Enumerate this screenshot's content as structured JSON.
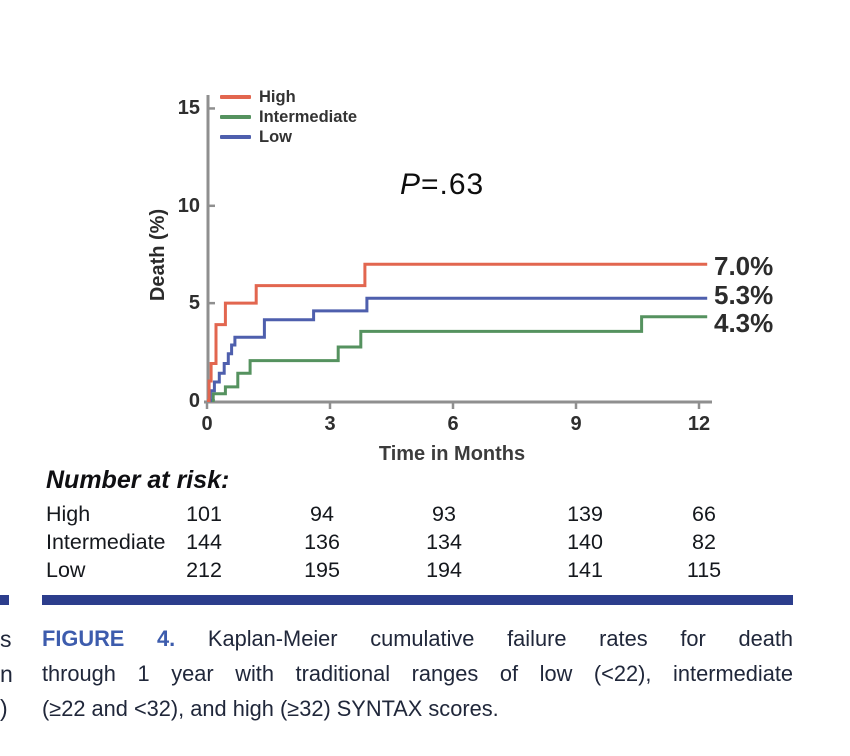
{
  "figure": {
    "p_value": {
      "italic": "P",
      "rest": "=.63"
    },
    "x_axis": {
      "label": "Time in Months",
      "ticks": [
        "0",
        "3",
        "6",
        "9",
        "12"
      ]
    },
    "y_axis": {
      "label": "Death (%)",
      "ticks": [
        "0",
        "5",
        "10",
        "15"
      ]
    },
    "legend": [
      {
        "name": "High",
        "color": "#E2664F"
      },
      {
        "name": "Intermediate",
        "color": "#55925F"
      },
      {
        "name": "Low",
        "color": "#4E5FAD"
      }
    ],
    "end_labels": [
      {
        "text": "7.0%",
        "series": "High"
      },
      {
        "text": "5.3%",
        "series": "Low"
      },
      {
        "text": "4.3%",
        "series": "Intermediate"
      }
    ]
  },
  "chart_data": {
    "type": "line",
    "variant": "kaplan_meier_step",
    "title": "",
    "xlabel": "Time in Months",
    "ylabel": "Death (%)",
    "xlim": [
      0,
      12
    ],
    "ylim": [
      0,
      15
    ],
    "xticks": [
      0,
      3,
      6,
      9,
      12
    ],
    "yticks": [
      0,
      5,
      10,
      15
    ],
    "grid": false,
    "legend_position": "top-left",
    "annotation": "P=.63",
    "series": [
      {
        "name": "High",
        "color": "#E2664F",
        "final_value_label": "7.0%",
        "points_months_percent": [
          [
            0,
            0
          ],
          [
            0.05,
            1.0
          ],
          [
            0.1,
            1.9
          ],
          [
            0.22,
            3.9
          ],
          [
            0.45,
            5.0
          ],
          [
            1.2,
            5.9
          ],
          [
            3.85,
            7.0
          ],
          [
            12.2,
            7.0
          ]
        ]
      },
      {
        "name": "Intermediate",
        "color": "#55925F",
        "final_value_label": "4.3%",
        "points_months_percent": [
          [
            0,
            0
          ],
          [
            0.15,
            0.35
          ],
          [
            0.45,
            0.7
          ],
          [
            0.75,
            1.4
          ],
          [
            1.05,
            2.05
          ],
          [
            3.2,
            2.75
          ],
          [
            3.75,
            3.55
          ],
          [
            10.6,
            4.3
          ],
          [
            12.2,
            4.3
          ]
        ]
      },
      {
        "name": "Low",
        "color": "#4E5FAD",
        "final_value_label": "5.3%",
        "points_months_percent": [
          [
            0,
            0
          ],
          [
            0.08,
            0.5
          ],
          [
            0.18,
            0.95
          ],
          [
            0.3,
            1.4
          ],
          [
            0.42,
            1.9
          ],
          [
            0.52,
            2.4
          ],
          [
            0.6,
            2.85
          ],
          [
            0.68,
            3.25
          ],
          [
            1.4,
            4.15
          ],
          [
            2.6,
            4.6
          ],
          [
            3.9,
            5.25
          ],
          [
            12.2,
            5.25
          ]
        ]
      }
    ]
  },
  "number_at_risk": {
    "title": "Number at risk:",
    "columns_at_months": [
      0,
      3,
      6,
      9,
      12
    ],
    "rows": [
      {
        "label": "High",
        "values": [
          "101",
          "94",
          "93",
          "139",
          "66"
        ]
      },
      {
        "label": "Intermediate",
        "values": [
          "144",
          "136",
          "134",
          "140",
          "82"
        ]
      },
      {
        "label": "Low",
        "values": [
          "212",
          "195",
          "194",
          "141",
          "115"
        ]
      }
    ]
  },
  "caption": {
    "label": "FIGURE 4.",
    "lines": [
      "Kaplan-Meier cumulative failure rates for death",
      "through 1 year with traditional ranges of low (<22), intermediate",
      "(≥22 and <32), and high (≥32) SYNTAX scores."
    ],
    "full_text": "FIGURE 4. Kaplan-Meier cumulative failure rates for death through 1 year with traditional ranges of low (<22), intermediate (≥22 and <32), and high (≥32) SYNTAX scores."
  },
  "margin_fragments": {
    "letters": [
      "s",
      "n",
      ")"
    ]
  },
  "colors": {
    "axis": "#8F8F8F",
    "tick_text": "#2E2E2E",
    "navy_rule": "#2C3D8C",
    "figure_label_blue": "#3D5CAD",
    "caption_text": "#20273A",
    "high_red": "#E2664F",
    "intermediate_green": "#55925F",
    "low_blue": "#4E5FAD"
  }
}
